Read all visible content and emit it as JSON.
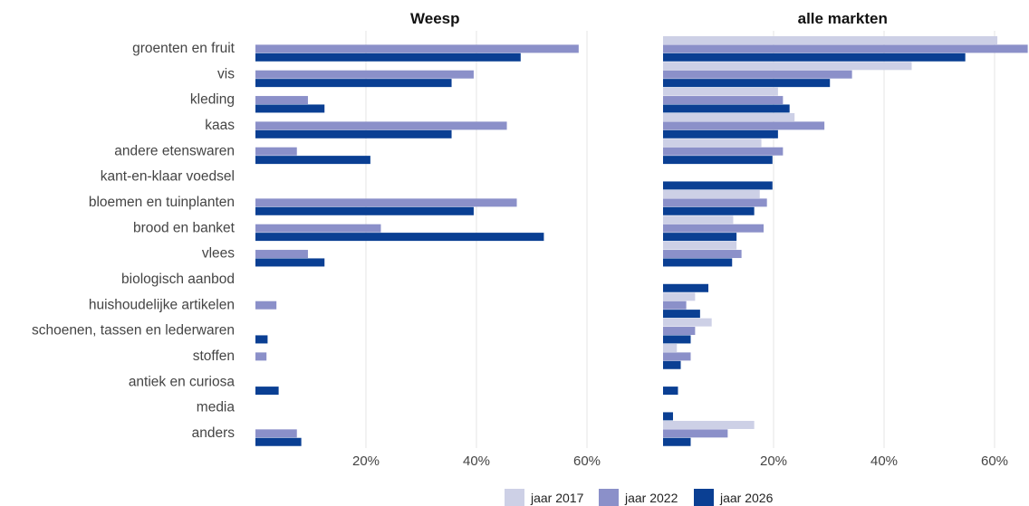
{
  "chart_data": {
    "type": "bar",
    "orientation": "horizontal",
    "categories": [
      "groenten en fruit",
      "vis",
      "kleding",
      "kaas",
      "andere etenswaren",
      "kant-en-klaar voedsel",
      "bloemen en tuinplanten",
      "brood en banket",
      "vlees",
      "biologisch aanbod",
      "huishoudelijke artikelen",
      "schoenen, tassen en lederwaren",
      "stoffen",
      "antiek en curiosa",
      "media",
      "anders"
    ],
    "xlim": [
      0,
      65
    ],
    "xticks": [
      20,
      40,
      60
    ],
    "tick_labels": [
      "20%",
      "40%",
      "60%"
    ],
    "grid": true,
    "legend_position": "bottom",
    "series_colors": [
      "#cdd0e6",
      "#8b90c9",
      "#0a3f93"
    ],
    "legend": [
      "jaar 2017",
      "jaar 2022",
      "jaar 2026"
    ],
    "panels": [
      {
        "title": "Weesp",
        "series": [
          {
            "name": "jaar 2017",
            "values": [
              null,
              null,
              null,
              null,
              null,
              null,
              null,
              null,
              null,
              null,
              null,
              null,
              null,
              null,
              null,
              null
            ]
          },
          {
            "name": "jaar 2022",
            "values": [
              58.5,
              39.5,
              9.5,
              45.5,
              7.5,
              null,
              47.3,
              22.7,
              9.5,
              null,
              3.8,
              null,
              2.0,
              null,
              null,
              7.5
            ]
          },
          {
            "name": "jaar 2026",
            "values": [
              48.0,
              35.5,
              12.5,
              35.5,
              20.8,
              null,
              39.5,
              52.2,
              12.5,
              null,
              null,
              2.2,
              null,
              4.2,
              null,
              8.3
            ]
          }
        ]
      },
      {
        "title": "alle markten",
        "series": [
          {
            "name": "jaar 2017",
            "values": [
              60.5,
              45.0,
              20.8,
              23.8,
              17.8,
              null,
              17.5,
              12.7,
              13.3,
              null,
              5.8,
              8.8,
              2.5,
              null,
              null,
              16.5
            ]
          },
          {
            "name": "jaar 2022",
            "values": [
              66.0,
              34.2,
              21.7,
              29.2,
              21.7,
              null,
              18.8,
              18.2,
              14.2,
              null,
              4.2,
              5.8,
              5.0,
              null,
              null,
              11.7
            ]
          },
          {
            "name": "jaar 2026",
            "values": [
              54.7,
              30.2,
              22.9,
              20.8,
              19.8,
              19.8,
              16.5,
              13.3,
              12.5,
              8.2,
              6.7,
              5.0,
              3.2,
              2.7,
              1.8,
              5.0
            ]
          }
        ]
      }
    ]
  }
}
